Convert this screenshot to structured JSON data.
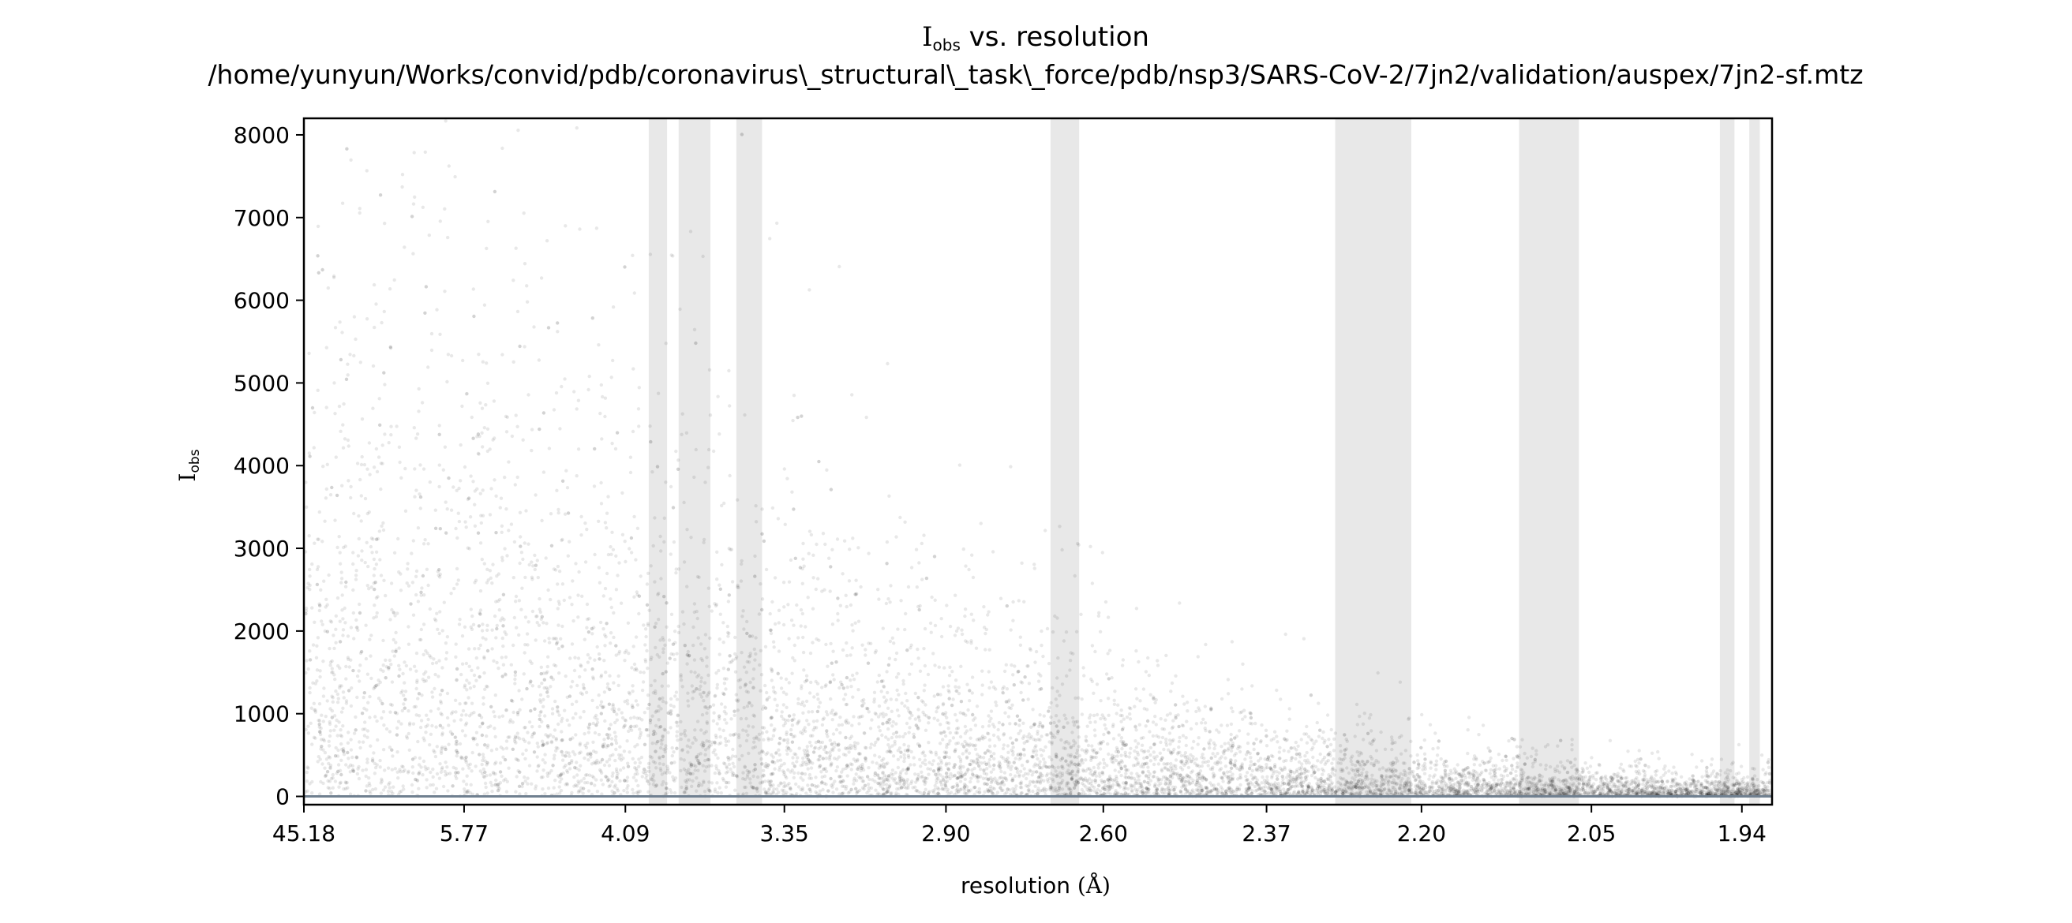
{
  "chart_data": {
    "type": "scatter",
    "title": {
      "symbol": "I",
      "subscript": "obs",
      "rest": " vs. resolution",
      "path": "/home/yunyun/Works/convid/pdb/coronavirus\\_structural\\_task\\_force/pdb/nsp3/SARS-CoV-2/7jn2/validation/auspex/7jn2-sf.mtz"
    },
    "xlabel": {
      "text": "resolution ",
      "unit": "(Å)"
    },
    "ylabel": {
      "symbol": "I",
      "subscript": "obs"
    },
    "x_axis": {
      "scale": "reciprocal-squared resolution (1/d²)",
      "range": [
        45.18,
        1.92
      ],
      "ticks": [
        "45.18",
        "5.77",
        "4.09",
        "3.35",
        "2.90",
        "2.60",
        "2.37",
        "2.20",
        "2.05",
        "1.94"
      ]
    },
    "y_axis": {
      "range": [
        -100,
        8200
      ],
      "ticks": [
        0,
        1000,
        2000,
        3000,
        4000,
        5000,
        6000,
        7000,
        8000
      ]
    },
    "ice_ring_bands": [
      [
        3.95,
        3.85
      ],
      [
        3.79,
        3.64
      ],
      [
        3.53,
        3.43
      ],
      [
        2.69,
        2.64
      ],
      [
        2.29,
        2.21
      ],
      [
        2.11,
        2.06
      ],
      [
        1.955,
        1.945
      ],
      [
        1.935,
        1.928
      ]
    ],
    "band_color": "#e8e8e8",
    "point_color": "#000000",
    "zero_line_color": "#708090",
    "grid": false,
    "legend": "none"
  }
}
